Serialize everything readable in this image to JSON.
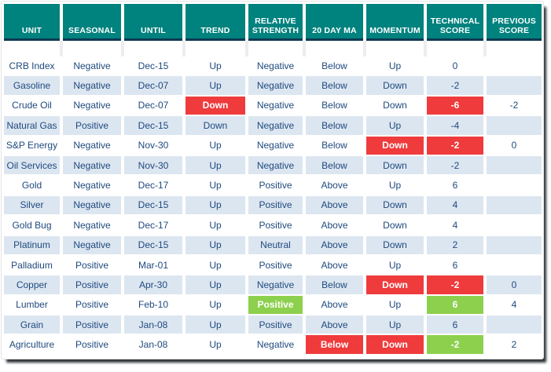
{
  "colors": {
    "header_bg": "#00827E",
    "header_text": "#FFFFFF",
    "divider": "#0F3A52",
    "row_bg": "#FFFFFF",
    "row_alt_bg": "#DCE6F1",
    "text": "#1F497D",
    "highlight_red": "#EF3B3C",
    "highlight_green": "#8DD04E",
    "highlight_text": "#FFFFFF",
    "frame_shadow": "#2E3136"
  },
  "table": {
    "columns": [
      {
        "label": "UNIT"
      },
      {
        "label": "SEASONAL"
      },
      {
        "label": "UNTIL"
      },
      {
        "label": "TREND"
      },
      {
        "label": "RELATIVE STRENGTH"
      },
      {
        "label": "20 DAY MA"
      },
      {
        "label": "MOMENTUM"
      },
      {
        "label": "TECHNICAL SCORE"
      },
      {
        "label": "PREVIOUS SCORE"
      }
    ],
    "rows": [
      {
        "cells": [
          {
            "v": "CRB Index"
          },
          {
            "v": "Negative"
          },
          {
            "v": "Dec-15"
          },
          {
            "v": "Up"
          },
          {
            "v": "Negative"
          },
          {
            "v": "Below"
          },
          {
            "v": "Up"
          },
          {
            "v": "0"
          },
          {
            "v": ""
          }
        ]
      },
      {
        "cells": [
          {
            "v": "Gasoline"
          },
          {
            "v": "Negative"
          },
          {
            "v": "Dec-07"
          },
          {
            "v": "Up"
          },
          {
            "v": "Negative"
          },
          {
            "v": "Below"
          },
          {
            "v": "Down"
          },
          {
            "v": "-2"
          },
          {
            "v": ""
          }
        ]
      },
      {
        "cells": [
          {
            "v": "Crude Oil"
          },
          {
            "v": "Negative"
          },
          {
            "v": "Dec-07"
          },
          {
            "v": "Down",
            "hl": "red"
          },
          {
            "v": "Negative"
          },
          {
            "v": "Below"
          },
          {
            "v": "Down"
          },
          {
            "v": "-6",
            "hl": "red"
          },
          {
            "v": "-2"
          }
        ]
      },
      {
        "cells": [
          {
            "v": "Natural Gas"
          },
          {
            "v": "Positive"
          },
          {
            "v": "Dec-15"
          },
          {
            "v": "Down"
          },
          {
            "v": "Negative"
          },
          {
            "v": "Below"
          },
          {
            "v": "Up"
          },
          {
            "v": "-4"
          },
          {
            "v": ""
          }
        ]
      },
      {
        "cells": [
          {
            "v": "S&P Energy"
          },
          {
            "v": "Negative"
          },
          {
            "v": "Nov-30"
          },
          {
            "v": "Up"
          },
          {
            "v": "Negative"
          },
          {
            "v": "Below"
          },
          {
            "v": "Down",
            "hl": "red"
          },
          {
            "v": "-2",
            "hl": "red"
          },
          {
            "v": "0"
          }
        ]
      },
      {
        "cells": [
          {
            "v": "Oil Services"
          },
          {
            "v": "Negative"
          },
          {
            "v": "Nov-30"
          },
          {
            "v": "Up"
          },
          {
            "v": "Negative"
          },
          {
            "v": "Below"
          },
          {
            "v": "Down"
          },
          {
            "v": "-2"
          },
          {
            "v": ""
          }
        ]
      },
      {
        "cells": [
          {
            "v": "Gold"
          },
          {
            "v": "Negative"
          },
          {
            "v": "Dec-17"
          },
          {
            "v": "Up"
          },
          {
            "v": "Positive"
          },
          {
            "v": "Above"
          },
          {
            "v": "Up"
          },
          {
            "v": "6"
          },
          {
            "v": ""
          }
        ]
      },
      {
        "cells": [
          {
            "v": "Silver"
          },
          {
            "v": "Negative"
          },
          {
            "v": "Dec-15"
          },
          {
            "v": "Up"
          },
          {
            "v": "Positive"
          },
          {
            "v": "Above"
          },
          {
            "v": "Down"
          },
          {
            "v": "4"
          },
          {
            "v": ""
          }
        ]
      },
      {
        "cells": [
          {
            "v": "Gold Bug"
          },
          {
            "v": "Negative"
          },
          {
            "v": "Dec-17"
          },
          {
            "v": "Up"
          },
          {
            "v": "Positive"
          },
          {
            "v": "Above"
          },
          {
            "v": "Down"
          },
          {
            "v": "4"
          },
          {
            "v": ""
          }
        ]
      },
      {
        "cells": [
          {
            "v": "Platinum"
          },
          {
            "v": "Negative"
          },
          {
            "v": "Dec-15"
          },
          {
            "v": "Up"
          },
          {
            "v": "Neutral"
          },
          {
            "v": "Above"
          },
          {
            "v": "Down"
          },
          {
            "v": "2"
          },
          {
            "v": ""
          }
        ]
      },
      {
        "cells": [
          {
            "v": "Palladium"
          },
          {
            "v": "Positive"
          },
          {
            "v": "Mar-01"
          },
          {
            "v": "Up"
          },
          {
            "v": "Positive"
          },
          {
            "v": "Above"
          },
          {
            "v": "Up"
          },
          {
            "v": "6"
          },
          {
            "v": ""
          }
        ]
      },
      {
        "cells": [
          {
            "v": "Copper"
          },
          {
            "v": "Positive"
          },
          {
            "v": "Apr-30"
          },
          {
            "v": "Up"
          },
          {
            "v": "Negative"
          },
          {
            "v": "Below"
          },
          {
            "v": "Down",
            "hl": "red"
          },
          {
            "v": "-2",
            "hl": "red"
          },
          {
            "v": "0"
          }
        ]
      },
      {
        "cells": [
          {
            "v": "Lumber"
          },
          {
            "v": "Positive"
          },
          {
            "v": "Feb-10"
          },
          {
            "v": "Up"
          },
          {
            "v": "Positive",
            "hl": "green"
          },
          {
            "v": "Above"
          },
          {
            "v": "Up"
          },
          {
            "v": "6",
            "hl": "green"
          },
          {
            "v": "4"
          }
        ]
      },
      {
        "cells": [
          {
            "v": "Grain"
          },
          {
            "v": "Positive"
          },
          {
            "v": "Jan-08"
          },
          {
            "v": "Up"
          },
          {
            "v": "Positive"
          },
          {
            "v": "Above"
          },
          {
            "v": "Up"
          },
          {
            "v": "6"
          },
          {
            "v": ""
          }
        ]
      },
      {
        "cells": [
          {
            "v": "Agriculture"
          },
          {
            "v": "Positive"
          },
          {
            "v": "Jan-08"
          },
          {
            "v": "Up"
          },
          {
            "v": "Negative"
          },
          {
            "v": "Below",
            "hl": "red"
          },
          {
            "v": "Down",
            "hl": "red"
          },
          {
            "v": "-2",
            "hl": "green"
          },
          {
            "v": "2"
          }
        ]
      }
    ]
  }
}
